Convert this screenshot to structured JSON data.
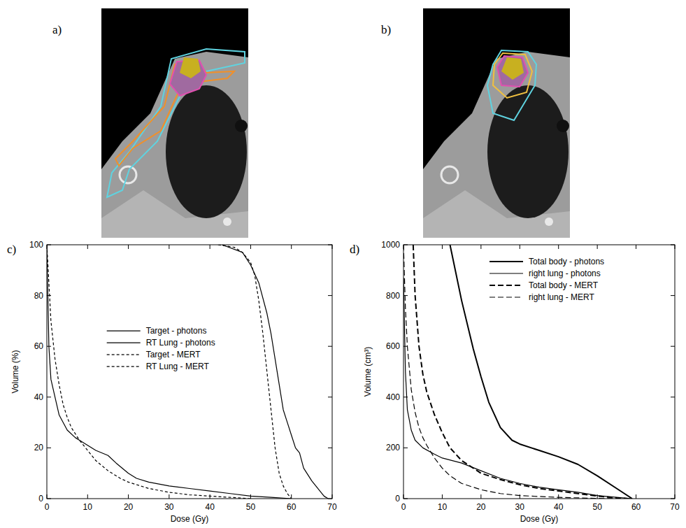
{
  "images": [
    {
      "label": "a)"
    },
    {
      "label": "b)"
    }
  ],
  "chart_data": [
    {
      "type": "line",
      "label": "c)",
      "x_label": "Dose (Gy)",
      "y_label": "Volume (%)",
      "xlim": [
        0,
        70
      ],
      "ylim": [
        0,
        100
      ],
      "xticks": [
        0,
        10,
        20,
        30,
        40,
        50,
        60,
        70
      ],
      "yticks": [
        0,
        20,
        40,
        60,
        80,
        100
      ],
      "legend": "center",
      "series": [
        {
          "name": "Target - photons",
          "color": "#000000",
          "line_style": "solid",
          "x": [
            43,
            48,
            50,
            52,
            54,
            55,
            56,
            57,
            58,
            59,
            60,
            61,
            62,
            63,
            65,
            67,
            68,
            69
          ],
          "values": [
            100,
            97,
            92,
            85,
            73,
            65,
            55,
            45,
            35,
            30,
            25,
            20,
            18,
            12,
            7,
            3,
            1,
            0
          ]
        },
        {
          "name": "RT Lung - photons",
          "color": "#000000",
          "line_style": "solid",
          "x": [
            0,
            0.5,
            1,
            2,
            3,
            5,
            7,
            8,
            10,
            12,
            15,
            17,
            20,
            22,
            25,
            30,
            35,
            40,
            45,
            50,
            55,
            60
          ],
          "values": [
            100,
            60,
            47,
            40,
            33,
            27,
            24,
            23,
            21,
            19,
            17,
            14,
            10,
            8,
            6.5,
            5,
            4,
            3,
            2,
            1,
            0.5,
            0
          ]
        },
        {
          "name": "Target - MERT",
          "color": "#000000",
          "line_style": "dashed",
          "x": [
            42,
            46,
            48,
            50,
            51,
            52,
            53,
            54,
            55,
            56,
            57,
            58,
            59,
            60
          ],
          "values": [
            100,
            99,
            97,
            93,
            88,
            78,
            65,
            50,
            35,
            20,
            10,
            5,
            2,
            0
          ]
        },
        {
          "name": "RT Lung - MERT",
          "color": "#000000",
          "line_style": "dashed",
          "x": [
            0,
            1,
            2,
            3,
            4,
            5,
            6,
            8,
            10,
            12,
            15,
            18,
            20,
            25,
            30,
            35,
            40,
            45,
            50
          ],
          "values": [
            100,
            70,
            55,
            45,
            37,
            32,
            28,
            23,
            19,
            15,
            11,
            8,
            6.5,
            4,
            2.5,
            1.5,
            1,
            0.5,
            0
          ]
        }
      ]
    },
    {
      "type": "line",
      "label": "d)",
      "x_label": "Dose (Gy)",
      "y_label": "Volume (cm³)",
      "xlim": [
        0,
        70
      ],
      "ylim": [
        0,
        1000
      ],
      "xticks": [
        0,
        10,
        20,
        30,
        40,
        50,
        60,
        70
      ],
      "yticks": [
        0,
        200,
        400,
        600,
        800,
        1000
      ],
      "legend": "upper right",
      "series": [
        {
          "name": "Total body - photons",
          "color": "#000000",
          "line_style": "solid",
          "x": [
            12,
            15,
            18,
            20,
            22,
            25,
            28,
            30,
            35,
            40,
            45,
            50,
            55,
            59
          ],
          "values": [
            1000,
            780,
            590,
            480,
            380,
            280,
            230,
            215,
            190,
            165,
            135,
            90,
            40,
            0
          ]
        },
        {
          "name": "right lung - photons",
          "color": "#000000",
          "line_style": "solid",
          "x": [
            0,
            0.5,
            1,
            2,
            3,
            5,
            8,
            10,
            15,
            20,
            25,
            30,
            35,
            40,
            45,
            50,
            55,
            59
          ],
          "values": [
            870,
            500,
            350,
            270,
            230,
            200,
            175,
            160,
            140,
            110,
            80,
            60,
            45,
            35,
            25,
            12,
            5,
            0
          ]
        },
        {
          "name": "Total body - MERT",
          "color": "#000000",
          "line_style": "dashed",
          "x": [
            2.5,
            3,
            4,
            5,
            6,
            8,
            10,
            12,
            15,
            20,
            25,
            30,
            35,
            40,
            45,
            50,
            55,
            58
          ],
          "values": [
            1000,
            800,
            600,
            490,
            420,
            330,
            260,
            200,
            150,
            100,
            75,
            55,
            40,
            30,
            20,
            10,
            3,
            0
          ]
        },
        {
          "name": "right lung - MERT",
          "color": "#000000",
          "line_style": "dashed",
          "x": [
            0,
            0.5,
            1,
            2,
            3,
            4,
            5,
            6,
            8,
            10,
            12,
            15,
            20,
            25,
            30,
            40,
            50,
            55
          ],
          "values": [
            1000,
            750,
            600,
            430,
            340,
            280,
            240,
            210,
            160,
            120,
            90,
            60,
            35,
            20,
            12,
            5,
            1,
            0
          ]
        }
      ]
    }
  ]
}
